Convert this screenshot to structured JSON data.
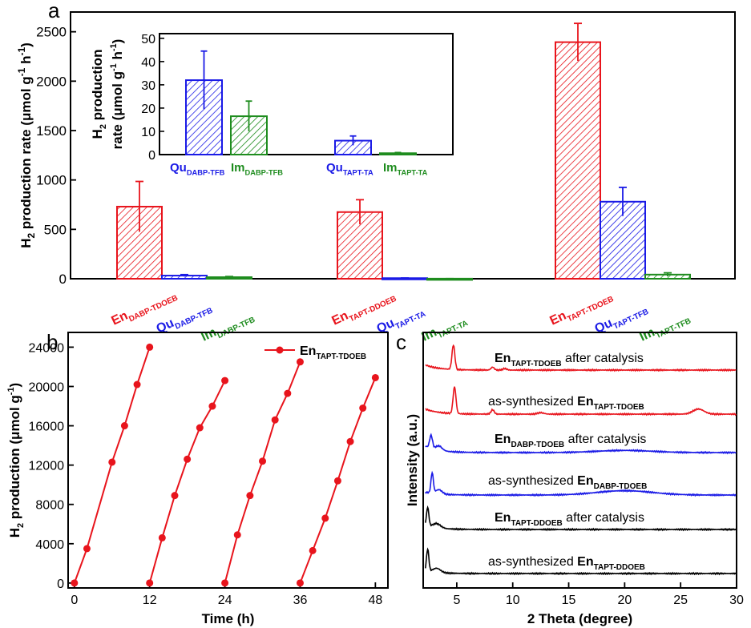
{
  "colors": {
    "red": "#e8141c",
    "blue": "#1a1ae6",
    "green": "#1e8c1e",
    "black": "#000000"
  },
  "panels": {
    "a": "a",
    "b": "b",
    "c": "c"
  },
  "chart_data": [
    {
      "id": "a-main",
      "type": "bar",
      "ylabel": {
        "main": "H",
        "sub": "2",
        "rest": " production rate (μmol g",
        "sup1": "-1",
        "mid": " h",
        "sup2": "-1",
        "end": ")"
      },
      "ylim": [
        0,
        2700
      ],
      "yticks": [
        0,
        500,
        1000,
        1500,
        2000,
        2500
      ],
      "groups": [
        {
          "bars": [
            {
              "label": "En",
              "sub": "DABP-TDOEB",
              "value": 730,
              "err": 255,
              "color": "red"
            },
            {
              "label": "Qu",
              "sub": "DABP-TFB",
              "value": 32,
              "err": 10,
              "color": "blue"
            },
            {
              "label": "Im",
              "sub": "DABP-TFB",
              "value": 16,
              "err": 7,
              "color": "green"
            }
          ]
        },
        {
          "bars": [
            {
              "label": "En",
              "sub": "TAPT-DDOEB",
              "value": 675,
              "err": 125,
              "color": "red"
            },
            {
              "label": "Qu",
              "sub": "TAPT-TA",
              "value": 6,
              "err": 2,
              "color": "blue"
            },
            {
              "label": "Im",
              "sub": "TAPT-TA",
              "value": 1,
              "err": 0.5,
              "color": "green"
            }
          ]
        },
        {
          "bars": [
            {
              "label": "En",
              "sub": "TAPT-TDOEB",
              "value": 2395,
              "err": 190,
              "color": "red"
            },
            {
              "label": "Qu",
              "sub": "TAPT-TFB",
              "value": 780,
              "err": 145,
              "color": "blue"
            },
            {
              "label": "Im",
              "sub": "TAPT-TFB",
              "value": 42,
              "err": 18,
              "color": "green"
            }
          ]
        }
      ]
    },
    {
      "id": "a-inset",
      "type": "bar",
      "ylabel": {
        "line1": "H",
        "sub": "2",
        "line1rest": " production",
        "line2": "rate (μmol g",
        "sup1": "-1",
        "mid": " h",
        "sup2": "-1",
        "end": ")"
      },
      "ylim": [
        0,
        52
      ],
      "yticks": [
        0,
        10,
        20,
        30,
        40,
        50
      ],
      "bars": [
        {
          "label": "Qu",
          "sub": "DABP-TFB",
          "value": 32,
          "err": 12.5,
          "color": "blue"
        },
        {
          "label": "Im",
          "sub": "DABP-TFB",
          "value": 16.5,
          "err": 6.5,
          "color": "green"
        },
        {
          "label": "Qu",
          "sub": "TAPT-TA",
          "value": 6,
          "err": 2,
          "color": "blue"
        },
        {
          "label": "Im",
          "sub": "TAPT-TA",
          "value": 0.6,
          "err": 0.3,
          "color": "green"
        }
      ]
    },
    {
      "id": "b",
      "type": "line",
      "xlabel": "Time (h)",
      "ylabel": {
        "main": "H",
        "sub": "2",
        "rest": " production (μmol g",
        "sup1": "-1",
        "end": ")"
      },
      "xlim": [
        -1,
        50
      ],
      "ylim": [
        -500,
        25500
      ],
      "xticks": [
        0,
        12,
        24,
        36,
        48
      ],
      "yticks": [
        0,
        4000,
        8000,
        12000,
        16000,
        20000,
        24000
      ],
      "legend": {
        "label": "En",
        "sub": "TAPT-TDOEB",
        "placement": "top-right"
      },
      "series": [
        {
          "x": [
            0,
            2,
            6,
            8,
            10,
            12
          ],
          "y": [
            0,
            3500,
            12300,
            16000,
            20200,
            24000
          ]
        },
        {
          "x": [
            12,
            14,
            16,
            18,
            20,
            22,
            24
          ],
          "y": [
            0,
            4600,
            8900,
            12600,
            15800,
            18000,
            20600
          ]
        },
        {
          "x": [
            24,
            26,
            28,
            30,
            32,
            34,
            36
          ],
          "y": [
            0,
            4900,
            8900,
            12400,
            16600,
            19300,
            22500
          ]
        },
        {
          "x": [
            36,
            38,
            40,
            42,
            44,
            46,
            48
          ],
          "y": [
            0,
            3300,
            6600,
            10400,
            14400,
            17800,
            20900
          ]
        }
      ]
    },
    {
      "id": "c",
      "type": "line",
      "xlabel": "2 Theta (degree)",
      "ylabel": "Intensity (a.u.)",
      "xlim": [
        2,
        30
      ],
      "xticks": [
        5,
        10,
        15,
        20,
        25,
        30
      ],
      "annotations": [
        {
          "pre": "",
          "bold": "En",
          "sub": "TAPT-TDOEB",
          "post": " after catalysis",
          "color": "red"
        },
        {
          "pre": "as-synthesized ",
          "bold": "En",
          "sub": "TAPT-TDOEB",
          "post": "",
          "color": "red"
        },
        {
          "pre": "",
          "bold": "En",
          "sub": "DABP-TDOEB",
          "post": " after catalysis",
          "color": "blue"
        },
        {
          "pre": "as-synthesized ",
          "bold": "En",
          "sub": "DABP-TDOEB",
          "post": "",
          "color": "blue"
        },
        {
          "pre": "",
          "bold": "En",
          "sub": "TAPT-DDOEB",
          "post": " after catalysis",
          "color": "black"
        },
        {
          "pre": "as-synthesized ",
          "bold": "En",
          "sub": "TAPT-DDOEB",
          "post": "",
          "color": "black"
        }
      ],
      "patterns": [
        {
          "color": "red",
          "baseline": 0.35,
          "peaks": [
            [
              4.7,
              1.7,
              0.18
            ],
            [
              8.2,
              0.2,
              0.2
            ],
            [
              9.3,
              0.1,
              0.25
            ]
          ]
        },
        {
          "color": "red",
          "baseline": 0.35,
          "peaks": [
            [
              4.8,
              1.85,
              0.18
            ],
            [
              8.2,
              0.3,
              0.2
            ],
            [
              12.5,
              0.1,
              0.4
            ],
            [
              26.6,
              0.35,
              0.7
            ]
          ]
        },
        {
          "color": "blue",
          "baseline": 0.45,
          "peaks": [
            [
              2.7,
              0.9,
              0.18
            ],
            [
              3.4,
              0.3,
              0.4
            ],
            [
              20.0,
              0.15,
              3.5
            ]
          ]
        },
        {
          "color": "blue",
          "baseline": 0.2,
          "peaks": [
            [
              2.8,
              1.4,
              0.15
            ],
            [
              3.4,
              0.3,
              0.4
            ],
            [
              20.0,
              0.3,
              3.5
            ]
          ]
        },
        {
          "color": "black",
          "baseline": 0.25,
          "peaks": [
            [
              2.4,
              1.3,
              0.15
            ],
            [
              3.2,
              0.3,
              0.5
            ]
          ]
        },
        {
          "color": "black",
          "baseline": 0.15,
          "peaks": [
            [
              2.4,
              1.55,
              0.15
            ],
            [
              3.2,
              0.3,
              0.5
            ]
          ]
        }
      ]
    }
  ]
}
